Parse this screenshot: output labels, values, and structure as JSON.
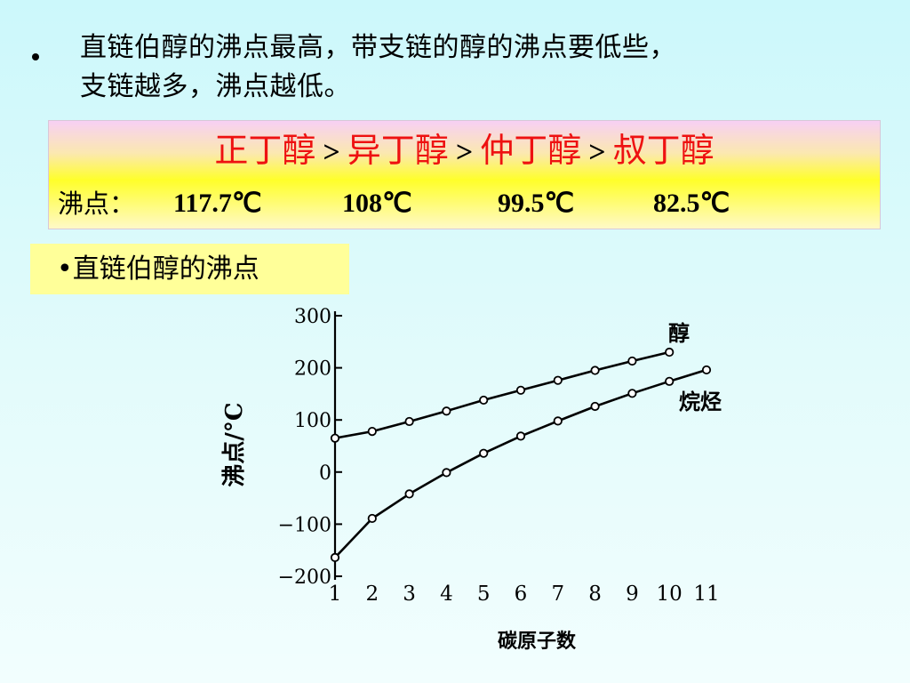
{
  "bullet": {
    "line1": "直链伯醇的沸点最高，带支链的醇的沸点要低些，",
    "line2": "支链越多，沸点越低。"
  },
  "comparison": {
    "alcohols": [
      "正丁醇",
      "异丁醇",
      "仲丁醇",
      "叔丁醇"
    ],
    "separator": ">",
    "bp_label": "沸点：",
    "boiling_points": [
      "117.7℃",
      "108℃",
      "99.5℃",
      "82.5℃"
    ]
  },
  "section_label": "•直链伯醇的沸点",
  "chart_data": {
    "type": "line",
    "xlabel": "碳原子数",
    "ylabel": "沸点/°C",
    "x_ticks": [
      1,
      2,
      3,
      4,
      5,
      6,
      7,
      8,
      9,
      10,
      11
    ],
    "y_ticks": [
      300,
      200,
      100,
      0,
      -100,
      -200
    ],
    "y_tick_labels": [
      "300",
      "200",
      "100",
      "0",
      "−100",
      "−200"
    ],
    "xlim": [
      1,
      11
    ],
    "ylim": [
      -200,
      300
    ],
    "grid": false,
    "series": [
      {
        "name": "醇",
        "x": [
          1,
          2,
          3,
          4,
          5,
          6,
          7,
          8,
          9,
          10
        ],
        "y": [
          65,
          78,
          97,
          117,
          138,
          157,
          176,
          195,
          213,
          230
        ]
      },
      {
        "name": "烷烃",
        "x": [
          1,
          2,
          3,
          4,
          5,
          6,
          7,
          8,
          9,
          10,
          11
        ],
        "y": [
          -164,
          -89,
          -42,
          -1,
          36,
          69,
          98,
          126,
          151,
          174,
          196
        ]
      }
    ]
  }
}
